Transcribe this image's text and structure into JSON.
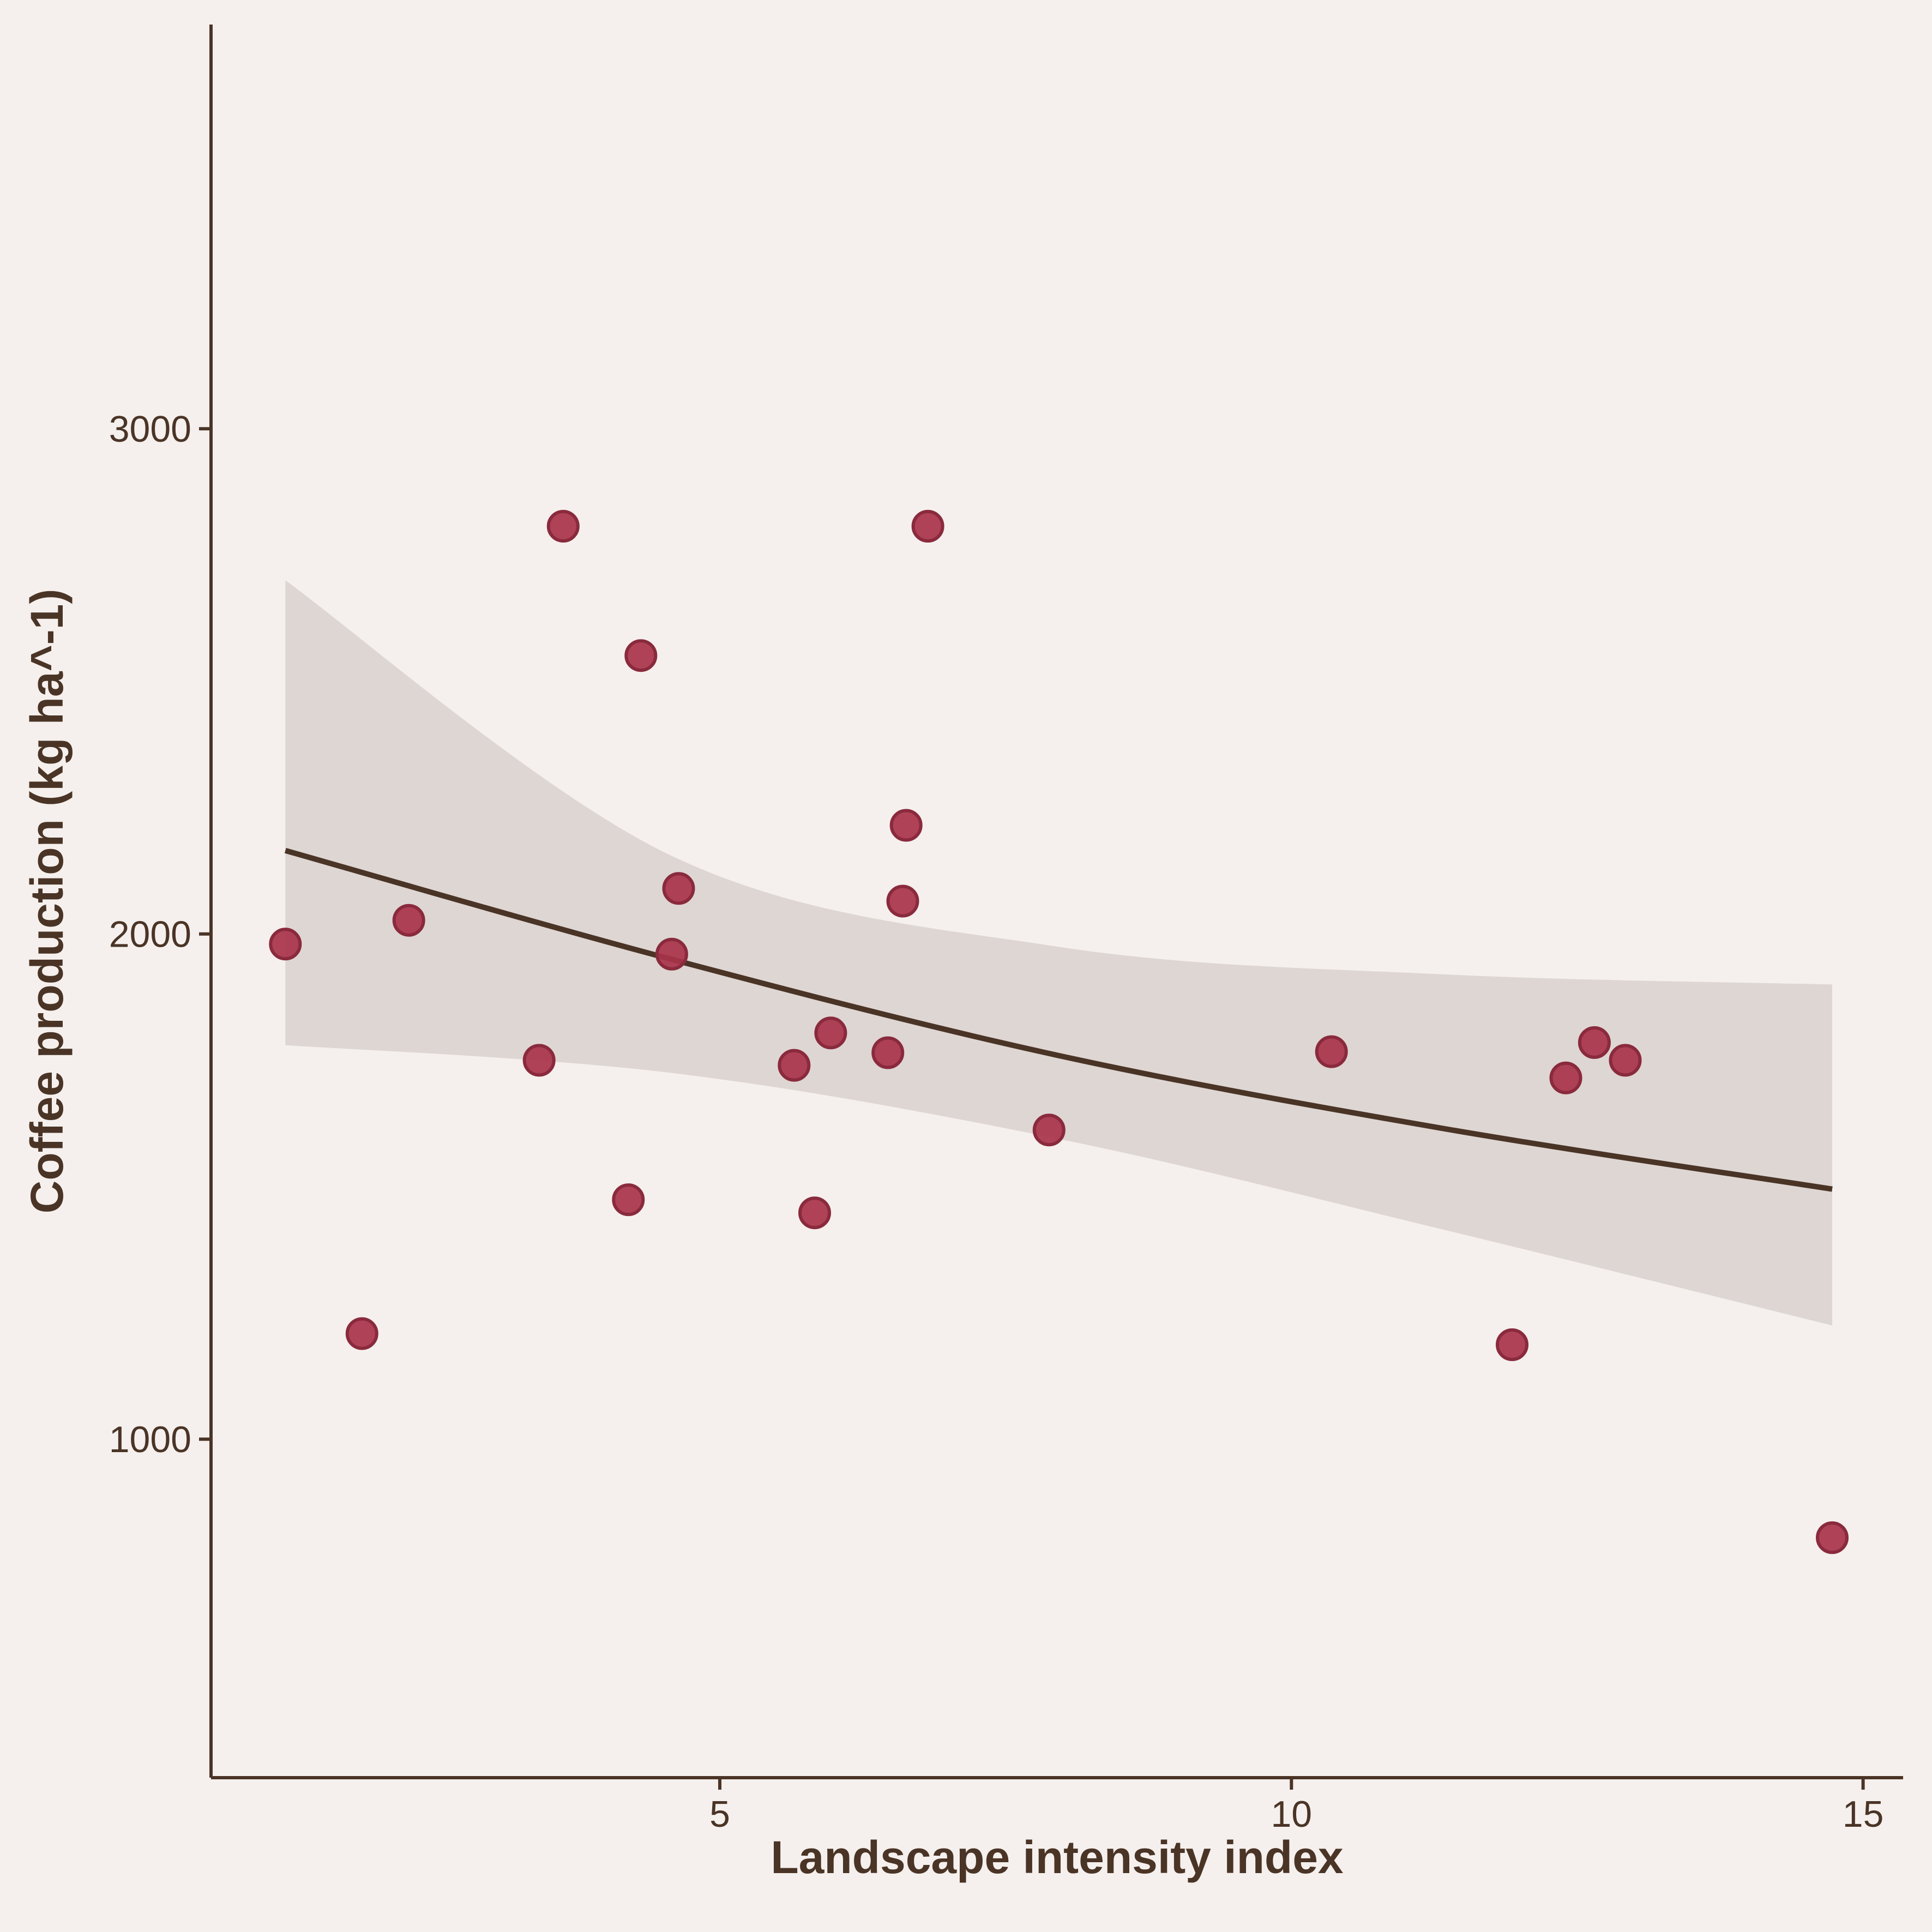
{
  "chart_data": {
    "type": "scatter",
    "title": "",
    "xlabel": "Landscape intensity index",
    "ylabel": "Coffee production (kg ha^-1)",
    "xlim": [
      0.55,
      15.35
    ],
    "ylim": [
      330,
      3800
    ],
    "xticks": [
      5,
      10,
      15
    ],
    "yticks": [
      1000,
      2000,
      3000
    ],
    "grid": false,
    "legend": "none",
    "series": [
      {
        "points": [
          {
            "x": 1.2,
            "y": 1980
          },
          {
            "x": 1.87,
            "y": 1209
          },
          {
            "x": 2.28,
            "y": 2027
          },
          {
            "x": 3.42,
            "y": 1750
          },
          {
            "x": 3.63,
            "y": 2807
          },
          {
            "x": 4.2,
            "y": 1474
          },
          {
            "x": 4.31,
            "y": 2551
          },
          {
            "x": 4.58,
            "y": 1960
          },
          {
            "x": 4.64,
            "y": 2090
          },
          {
            "x": 5.65,
            "y": 1740
          },
          {
            "x": 5.83,
            "y": 1448
          },
          {
            "x": 5.97,
            "y": 1804
          },
          {
            "x": 6.47,
            "y": 1765
          },
          {
            "x": 6.6,
            "y": 2065
          },
          {
            "x": 6.63,
            "y": 2215
          },
          {
            "x": 6.82,
            "y": 2807
          },
          {
            "x": 7.88,
            "y": 1612
          },
          {
            "x": 10.35,
            "y": 1767
          },
          {
            "x": 11.93,
            "y": 1187
          },
          {
            "x": 12.4,
            "y": 1715
          },
          {
            "x": 12.65,
            "y": 1785
          },
          {
            "x": 12.92,
            "y": 1750
          },
          {
            "x": 14.73,
            "y": 805
          }
        ]
      }
    ],
    "fit": {
      "x": [
        1.2,
        4.575,
        7.95,
        11.325,
        14.73
      ],
      "y": [
        2165,
        1950,
        1760,
        1615,
        1495
      ],
      "ci_lower": [
        1780,
        1725,
        1595,
        1415,
        1225
      ],
      "ci_upper": [
        2700,
        2155,
        1975,
        1920,
        1900
      ]
    },
    "colors": {
      "background": "#f5f0ed",
      "points": "#a8334a",
      "point_outline": "#8a2a3d",
      "fit_line": "#4a3426",
      "ci_band": "#ded6d3",
      "axis": "#4a3426"
    }
  }
}
